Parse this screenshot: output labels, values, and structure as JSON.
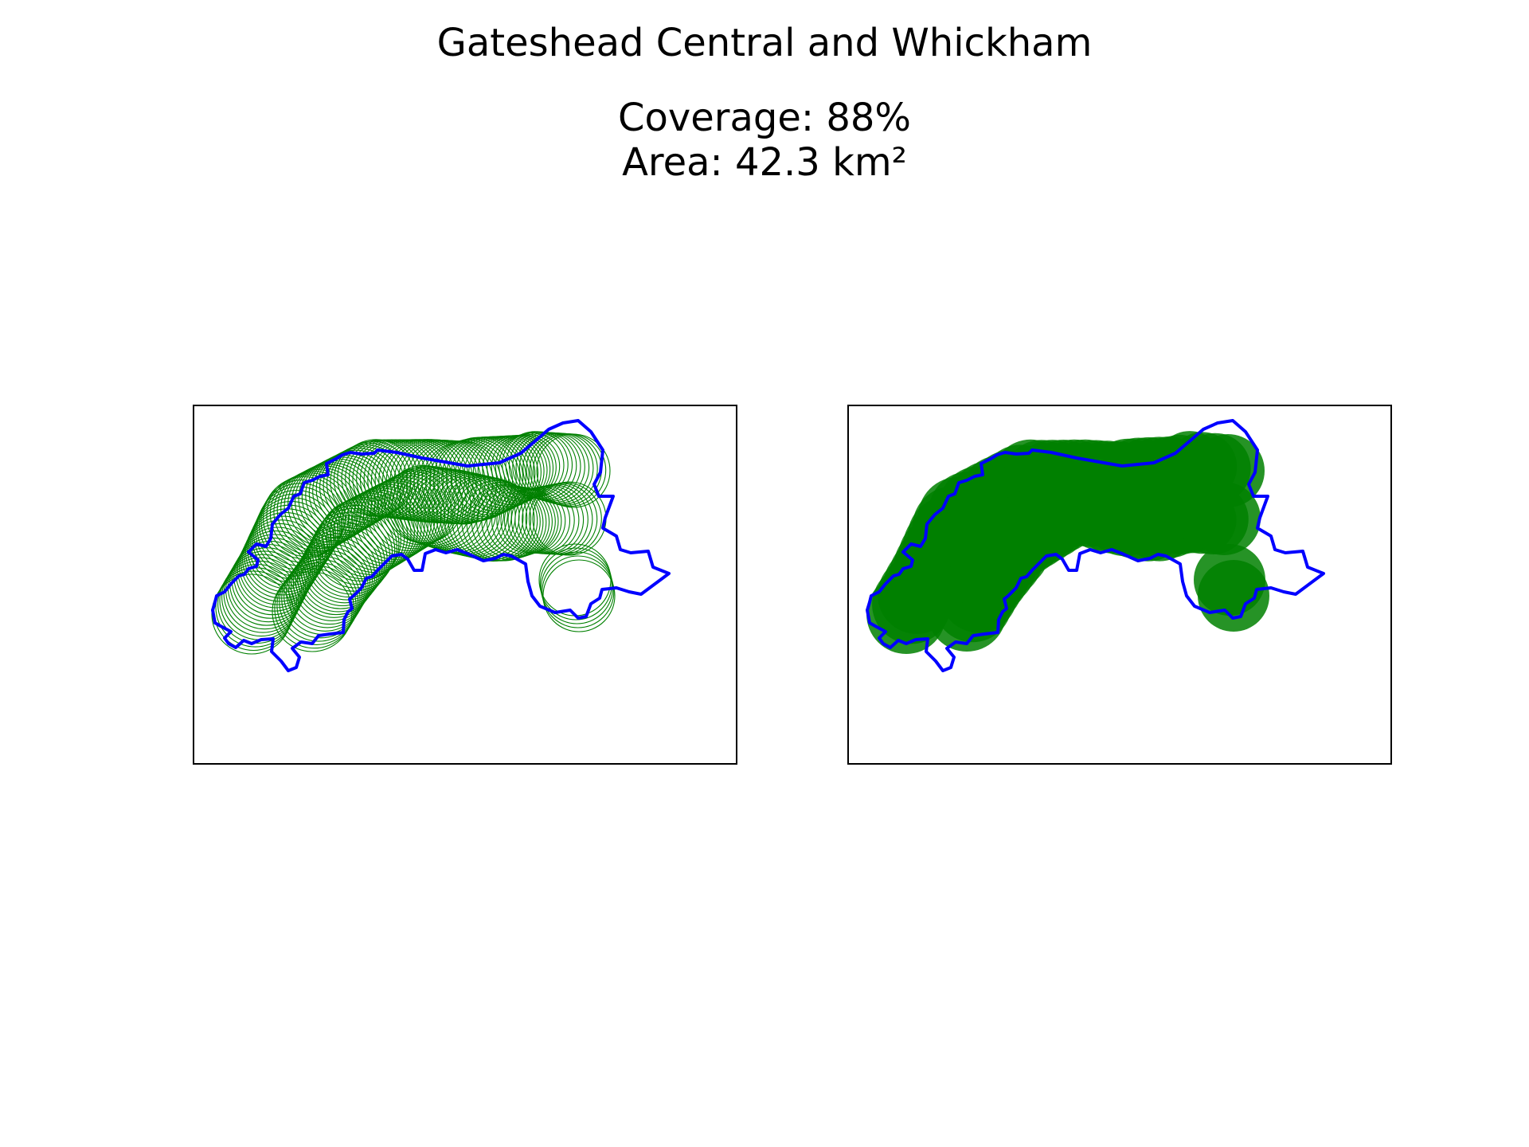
{
  "figure": {
    "title": "Gateshead Central and Whickham",
    "coverage_text": "Coverage: 88%",
    "area_text": "Area: 42.3 km²"
  },
  "panels": [
    {
      "name": "circle-outlines",
      "fill_style": "outline"
    },
    {
      "name": "filled-coverage",
      "fill_style": "filled"
    }
  ],
  "colors": {
    "boundary": "#0000ff",
    "coverage": "#008000",
    "frame": "#000000"
  }
}
